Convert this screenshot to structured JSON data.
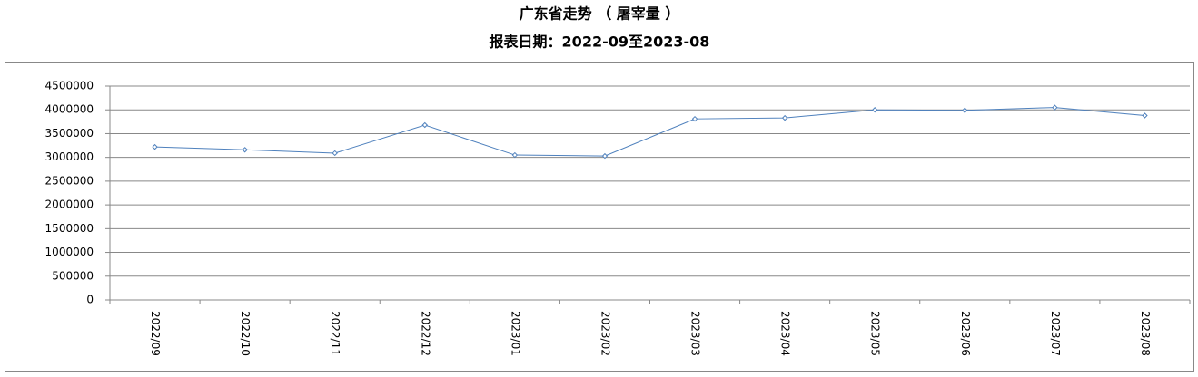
{
  "chart_data": {
    "type": "line",
    "title": "广东省走势 （ 屠宰量 ）",
    "subtitle": "报表日期：2022-09至2023-08",
    "categories": [
      "2022/09",
      "2022/10",
      "2022/11",
      "2022/12",
      "2023/01",
      "2023/02",
      "2023/03",
      "2023/04",
      "2023/05",
      "2023/06",
      "2023/07",
      "2023/08"
    ],
    "series": [
      {
        "name": "屠宰量",
        "color": "#4f81bd",
        "values": [
          3220000,
          3160000,
          3090000,
          3680000,
          3050000,
          3030000,
          3810000,
          3830000,
          4000000,
          3990000,
          4050000,
          3880000
        ]
      }
    ],
    "ylim": [
      0,
      4500000
    ],
    "yticks": [
      0,
      500000,
      1000000,
      1500000,
      2000000,
      2500000,
      3000000,
      3500000,
      4000000,
      4500000
    ],
    "grid": true
  }
}
